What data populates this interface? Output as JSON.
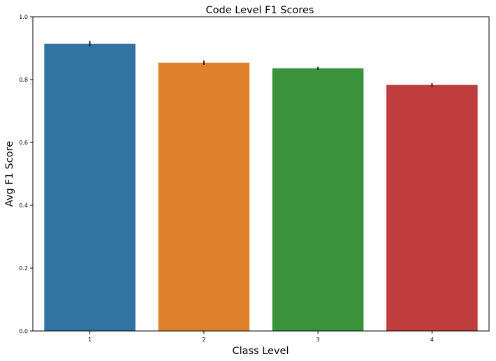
{
  "chart_data": {
    "type": "bar",
    "title": "Code Level F1 Scores",
    "xlabel": "Class Level",
    "ylabel": "Avg F1 Score",
    "categories": [
      "1",
      "2",
      "3",
      "4"
    ],
    "values": [
      0.914,
      0.854,
      0.836,
      0.783
    ],
    "error_low": [
      0.906,
      0.847,
      0.831,
      0.777
    ],
    "error_high": [
      0.923,
      0.861,
      0.841,
      0.789
    ],
    "colors": [
      "#3274a1",
      "#e1812c",
      "#3a923a",
      "#c03d3e"
    ],
    "ylim": [
      0,
      1.0
    ],
    "yticks": [
      0.0,
      0.2,
      0.4,
      0.6,
      0.8,
      1.0
    ],
    "ytick_labels": [
      "0.0",
      "0.2",
      "0.4",
      "0.6",
      "0.8",
      "1.0"
    ],
    "grid": false,
    "legend": "none"
  }
}
